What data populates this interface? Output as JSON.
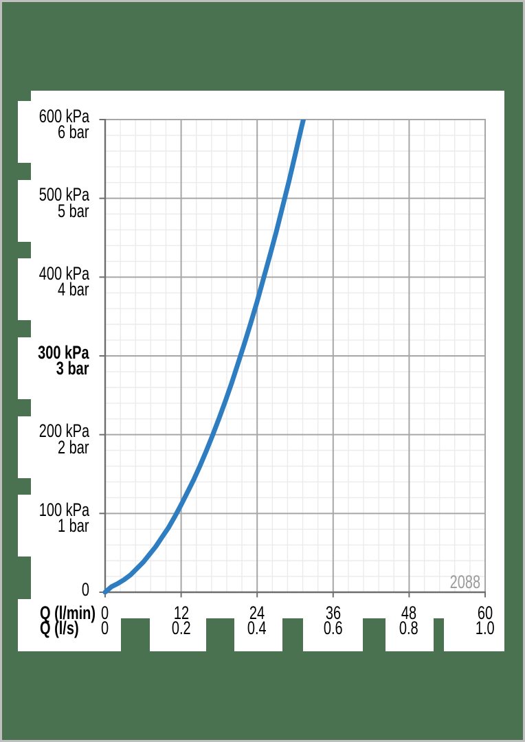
{
  "page": {
    "description": "Pressure / flow-rate diagram on green page",
    "colors": {
      "background": "#4A7150",
      "panel": "#FFFFFF",
      "outer_border": "#BFBFBF",
      "axis_line": "#6E6E6E",
      "grid_major": "#A6A6A6",
      "grid_minor": "#EBEBEB",
      "label_text": "#000000",
      "annotation_text": "#9B9B9B",
      "curve": "#2E7DC1"
    }
  },
  "chart_data": {
    "type": "line",
    "title": "",
    "x_axis": {
      "rows": [
        {
          "unit_label": "Q (l/min)",
          "tick_labels": [
            "0",
            "12",
            "24",
            "36",
            "48",
            "60"
          ],
          "range": [
            0,
            60
          ],
          "major_step": 12,
          "minor_step": 2.4
        },
        {
          "unit_label": "Q (l/s)",
          "tick_labels": [
            "0",
            "0.2",
            "0.4",
            "0.6",
            "0.8",
            "1.0"
          ],
          "range": [
            0,
            1.0
          ],
          "major_step": 0.2
        }
      ]
    },
    "y_axis": {
      "zero_label": "0",
      "range_kpa": [
        0,
        600
      ],
      "major_step_kpa": 100,
      "minor_step_kpa": 20,
      "tick_pairs": [
        {
          "kpa_label": "600 kPa",
          "bar_label": "6 bar",
          "kpa": 600,
          "bold": false
        },
        {
          "kpa_label": "500 kPa",
          "bar_label": "5 bar",
          "kpa": 500,
          "bold": false
        },
        {
          "kpa_label": "400 kPa",
          "bar_label": "4 bar",
          "kpa": 400,
          "bold": false
        },
        {
          "kpa_label": "300 kPa",
          "bar_label": "3 bar",
          "kpa": 300,
          "bold": true
        },
        {
          "kpa_label": "200 kPa",
          "bar_label": "2 bar",
          "kpa": 200,
          "bold": false
        },
        {
          "kpa_label": "100 kPa",
          "bar_label": "1 bar",
          "kpa": 100,
          "bold": false
        }
      ]
    },
    "grid": {
      "major": true,
      "minor": true,
      "minors_per_major": 5
    },
    "legend": null,
    "annotation": {
      "text": "2088"
    },
    "series": [
      {
        "name": "pressure-drop-curve",
        "color": "#2E7DC1",
        "x_unit": "l/min",
        "y_unit": "kPa",
        "points": [
          [
            0,
            0
          ],
          [
            1,
            7
          ],
          [
            2,
            11
          ],
          [
            3,
            16
          ],
          [
            4,
            22
          ],
          [
            5,
            30
          ],
          [
            6,
            38
          ],
          [
            7,
            48
          ],
          [
            8,
            58
          ],
          [
            9,
            70
          ],
          [
            10,
            82
          ],
          [
            11,
            96
          ],
          [
            12,
            111
          ],
          [
            13,
            127
          ],
          [
            14,
            143
          ],
          [
            15,
            161
          ],
          [
            16,
            180
          ],
          [
            17,
            200
          ],
          [
            18,
            221
          ],
          [
            19,
            243
          ],
          [
            20,
            266
          ],
          [
            21,
            291
          ],
          [
            22,
            316
          ],
          [
            23,
            342
          ],
          [
            24,
            369
          ],
          [
            25,
            398
          ],
          [
            26,
            427
          ],
          [
            27,
            457
          ],
          [
            28,
            489
          ],
          [
            29,
            521
          ],
          [
            30,
            555
          ],
          [
            31,
            590
          ],
          [
            31.3,
            600
          ]
        ]
      }
    ]
  }
}
